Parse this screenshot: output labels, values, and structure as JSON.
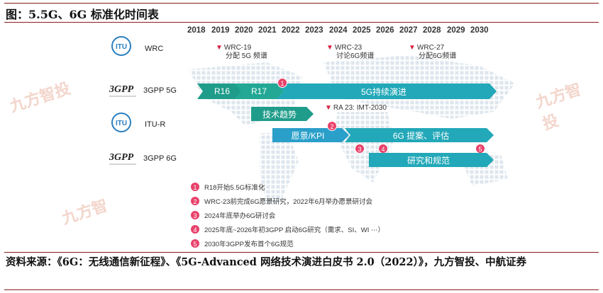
{
  "figure_title": "图：5.5G、6G 标准化时间表",
  "source_text": "资料来源：《6G：无线通信新征程》、《5G-Advanced 网络技术演进白皮书 2.0（2022）》，九方智投、中航证券",
  "watermark": "九方智投",
  "watermark_small": "九方智",
  "years": [
    "2018",
    "2019",
    "2020",
    "2021",
    "2022",
    "2023",
    "2024",
    "2025",
    "2026",
    "2027",
    "2028",
    "2029",
    "2030"
  ],
  "rows": {
    "wrc": "WRC",
    "gpp5g": "3GPP 5G",
    "itur": "ITU-R",
    "gpp6g": "3GPP 6G"
  },
  "wrc_markers": [
    {
      "name": "WRC-19",
      "desc": "分配 5G 频谱"
    },
    {
      "name": "WRC-23",
      "desc": "讨论6G频谱"
    },
    {
      "name": "WRC-27",
      "desc": "分配6G频谱"
    }
  ],
  "gpp5g_bars": {
    "r16": "R16",
    "r17": "R17",
    "evolution": "5G持续演进"
  },
  "itur_items": {
    "tech_trends": "技术趋势",
    "ra23": "RA 23: IMT-2030",
    "vision": "愿景/KPI",
    "proposals": "6G 提案、评估"
  },
  "gpp6g_bar": "研究和规范",
  "legend": [
    {
      "num": "1",
      "text": "R18开始5.5G标准化"
    },
    {
      "num": "2",
      "text": "WRC-23前完成6G愿景研究，2022年6月举办愿景研讨会"
    },
    {
      "num": "3",
      "text": "2024年底举办6G研讨会"
    },
    {
      "num": "4",
      "text": "2025年底~2026年初3GPP 启动6G研究（需求、SI、WI ⋯）"
    },
    {
      "num": "5",
      "text": "2030年3GPP发布首个6G规范"
    }
  ],
  "logo_text": {
    "itu": "ITU",
    "gpp": "3GPP"
  },
  "colors": {
    "accent": "#8b1a1a",
    "teal_dark": "#1f9c8a",
    "teal": "#22a8b8",
    "blue": "#2a8fc9",
    "marker": "#e8416a"
  }
}
